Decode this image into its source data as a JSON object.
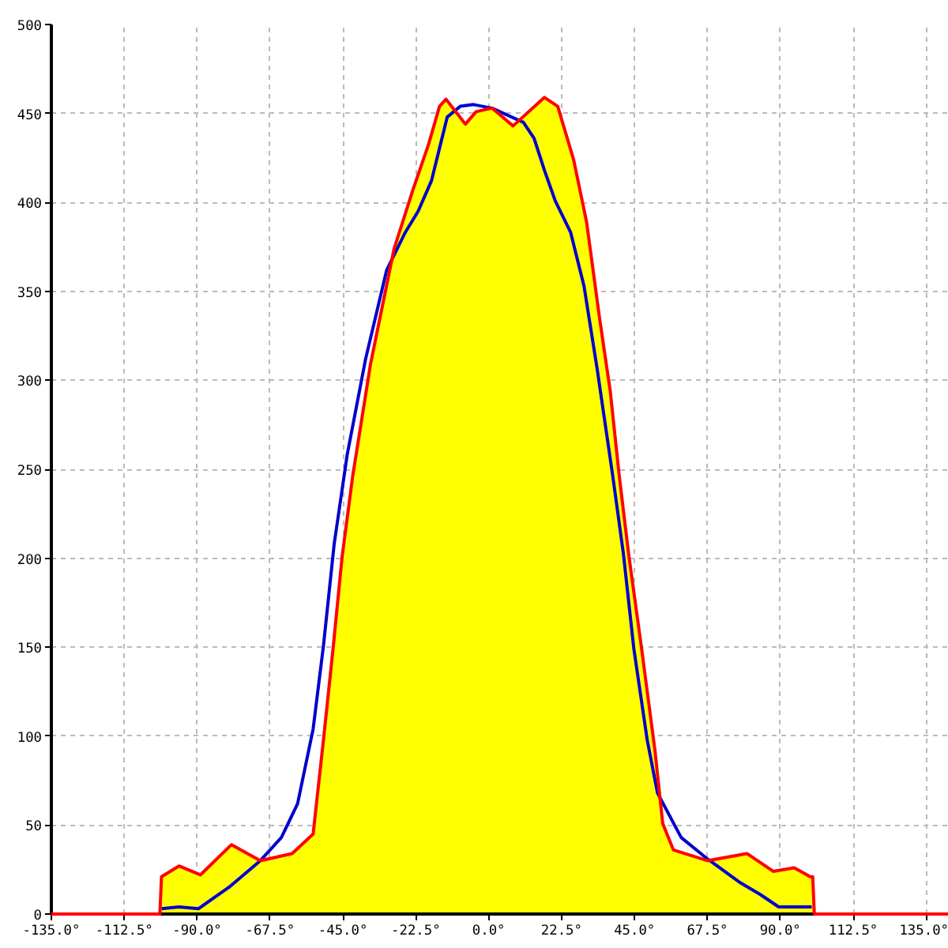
{
  "chart_data": {
    "type": "area",
    "series": [
      {
        "color": "#ffff00",
        "x": [
          -101,
          -95.6,
          -89,
          -79.4,
          -70.5,
          -60.7,
          -54.2,
          -51,
          -48,
          -45.3,
          -42,
          -36.5,
          -29.2,
          -23.4,
          -18.5,
          -15.2,
          -13.2,
          -7.2,
          -3.9,
          1,
          7.5,
          17.2,
          21.3,
          26.2,
          30.2,
          34.2,
          37.5,
          40.3,
          43.2,
          47.2,
          51.3,
          53.7,
          57,
          67.5,
          79.7,
          87.8,
          94.3,
          99.2,
          100
        ],
        "values": [
          21,
          27,
          22,
          39,
          30,
          34,
          45,
          98,
          150,
          200,
          246,
          309,
          374,
          407,
          433,
          454,
          458,
          444,
          451,
          453,
          443,
          459,
          454,
          424,
          389,
          335,
          294,
          246,
          202,
          149,
          92,
          51,
          36,
          30,
          34,
          24,
          26,
          21,
          21
        ]
      },
      {
        "type": "line",
        "color": "#0000cc",
        "x": [
          -101,
          -95.6,
          -89.6,
          -80.2,
          -70.5,
          -64,
          -59,
          -54.2,
          -51,
          -47.7,
          -43.7,
          -38,
          -31.5,
          -25.8,
          -21.8,
          -17.7,
          -12.8,
          -8.8,
          -4.7,
          1,
          10.7,
          14,
          17.2,
          20.5,
          25.3,
          29.4,
          33.5,
          38.3,
          41.6,
          44.8,
          48.9,
          52.1,
          59.4,
          67.5,
          77.3,
          83.8,
          89.5,
          93.5,
          99.7
        ],
        "values": [
          3,
          4,
          3,
          15,
          30,
          43,
          62,
          104,
          151,
          208,
          258,
          312,
          362,
          383,
          395,
          412,
          448,
          454,
          455,
          453,
          445,
          436,
          418,
          401,
          383,
          353,
          306,
          246,
          202,
          149,
          98,
          68,
          43,
          31,
          18,
          11,
          4,
          4,
          4
        ]
      },
      {
        "type": "line",
        "color": "#ff0000",
        "x": [
          -135,
          -101.5,
          -101,
          -95.6,
          -89,
          -79.4,
          -70.5,
          -60.7,
          -54.2,
          -51,
          -48,
          -45.3,
          -42,
          -36.5,
          -29.2,
          -23.4,
          -18.5,
          -15.2,
          -13.2,
          -7.2,
          -3.9,
          1,
          7.5,
          17.2,
          21.3,
          26.2,
          30.2,
          34.2,
          37.5,
          40.3,
          43.2,
          47.2,
          51.3,
          53.7,
          57,
          67.5,
          79.7,
          87.8,
          94.3,
          99.2,
          100,
          100.5,
          142
        ],
        "values": [
          0,
          0,
          21,
          27,
          22,
          39,
          30,
          34,
          45,
          98,
          150,
          200,
          246,
          309,
          374,
          407,
          433,
          454,
          458,
          444,
          451,
          453,
          443,
          459,
          454,
          424,
          389,
          335,
          294,
          246,
          202,
          149,
          92,
          51,
          36,
          30,
          34,
          24,
          26,
          21,
          21,
          0,
          0
        ]
      }
    ],
    "xlim": [
      -135,
      142
    ],
    "ylim": [
      0,
      500
    ],
    "xticks": [
      {
        "value": -135,
        "label": "-135.0°"
      },
      {
        "value": -112.5,
        "label": "-112.5°"
      },
      {
        "value": -90,
        "label": "-90.0°"
      },
      {
        "value": -67.5,
        "label": "-67.5°"
      },
      {
        "value": -45,
        "label": "-45.0°"
      },
      {
        "value": -22.5,
        "label": "-22.5°"
      },
      {
        "value": 0,
        "label": "0.0°"
      },
      {
        "value": 22.5,
        "label": "22.5°"
      },
      {
        "value": 45,
        "label": "45.0°"
      },
      {
        "value": 67.5,
        "label": "67.5°"
      },
      {
        "value": 90,
        "label": "90.0°"
      },
      {
        "value": 112.5,
        "label": "112.5°"
      },
      {
        "value": 135,
        "label": "135.0°"
      }
    ],
    "yticks": [
      0,
      50,
      100,
      150,
      200,
      250,
      300,
      350,
      400,
      450,
      500
    ],
    "grid": true
  }
}
